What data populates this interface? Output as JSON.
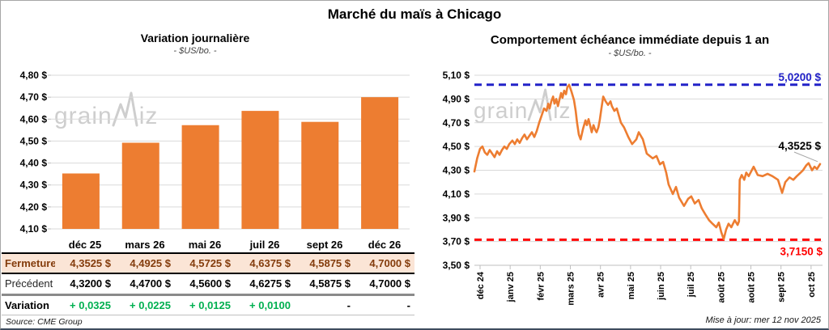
{
  "page": {
    "title": "Marché du maïs à Chicago",
    "source": "Source: CME Group",
    "footer_update": "Mise à jour: mer 12 nov 2025",
    "watermark": {
      "part1": "grain",
      "part2": "iz"
    },
    "colors": {
      "accent_orange": "#ED7D31",
      "positive_green": "#00B050",
      "high_blue": "#2222C8",
      "low_red": "#FF0000",
      "fermeture_text": "#843C0C",
      "fermeture_bg": "#FBE5D6",
      "gridline": "#D9D9D9"
    }
  },
  "table": {
    "columns": [
      "déc 25",
      "mars 26",
      "mai 26",
      "juil 26",
      "sept 26",
      "déc 26"
    ],
    "rows": [
      {
        "label": "Fermeture",
        "values": [
          "4,3525 $",
          "4,4925 $",
          "4,5725 $",
          "4,6375 $",
          "4,5875 $",
          "4,7000 $"
        ]
      },
      {
        "label": "Précédent",
        "values": [
          "4,3200 $",
          "4,4700 $",
          "4,5600 $",
          "4,6275 $",
          "4,5875 $",
          "4,7000 $"
        ]
      },
      {
        "label": "Variation",
        "values": [
          "+ 0,0325",
          "+ 0,0225",
          "+ 0,0125",
          "+ 0,0100",
          "-",
          "-"
        ]
      }
    ]
  },
  "chart_data": [
    {
      "type": "bar",
      "title": "Variation journalière",
      "unit_label": "- $US/bo. -",
      "categories": [
        "déc 25",
        "mars 26",
        "mai 26",
        "juil 26",
        "sept 26",
        "déc 26"
      ],
      "values": [
        4.3525,
        4.4925,
        4.5725,
        4.6375,
        4.5875,
        4.7
      ],
      "ylim": [
        4.1,
        4.8
      ],
      "ytick_step": 0.1,
      "y_tick_labels": [
        "4,80 $",
        "4,70 $",
        "4,60 $",
        "4,50 $",
        "4,40 $",
        "4,30 $",
        "4,20 $",
        "4,10 $"
      ],
      "bar_color": "#ED7D31",
      "grid": true
    },
    {
      "type": "line",
      "title": "Comportement échéance immédiate depuis 1 an",
      "unit_label": "- $US/bo. -",
      "ylim": [
        3.5,
        5.1
      ],
      "ytick_step": 0.2,
      "y_tick_labels": [
        "5,10 $",
        "4,90 $",
        "4,70 $",
        "4,50 $",
        "4,30 $",
        "4,10 $",
        "3,90 $",
        "3,70 $",
        "3,50 $"
      ],
      "x_tick_labels": [
        "déc 24",
        "janv 25",
        "févr 25",
        "mars 25",
        "avr 25",
        "mai 25",
        "juin 25",
        "juil 25",
        "août 25",
        "août 25",
        "sept 25",
        "oct 25"
      ],
      "line_color": "#ED7D31",
      "grid": true,
      "high_line": {
        "value": 5.02,
        "label": "5,0200 $",
        "color": "#2222C8"
      },
      "low_line": {
        "value": 3.715,
        "label": "3,7150 $",
        "color": "#FF0000"
      },
      "last_point_label": "4,3525 $",
      "last_value": 4.3525,
      "points": [
        [
          0.0,
          4.29
        ],
        [
          0.008,
          4.4
        ],
        [
          0.016,
          4.48
        ],
        [
          0.023,
          4.5
        ],
        [
          0.03,
          4.45
        ],
        [
          0.037,
          4.43
        ],
        [
          0.044,
          4.47
        ],
        [
          0.051,
          4.44
        ],
        [
          0.058,
          4.41
        ],
        [
          0.065,
          4.46
        ],
        [
          0.072,
          4.43
        ],
        [
          0.079,
          4.47
        ],
        [
          0.086,
          4.5
        ],
        [
          0.093,
          4.48
        ],
        [
          0.1,
          4.52
        ],
        [
          0.109,
          4.55
        ],
        [
          0.116,
          4.52
        ],
        [
          0.123,
          4.56
        ],
        [
          0.13,
          4.53
        ],
        [
          0.137,
          4.57
        ],
        [
          0.144,
          4.6
        ],
        [
          0.151,
          4.56
        ],
        [
          0.158,
          4.59
        ],
        [
          0.165,
          4.62
        ],
        [
          0.172,
          4.58
        ],
        [
          0.179,
          4.63
        ],
        [
          0.186,
          4.7
        ],
        [
          0.193,
          4.76
        ],
        [
          0.2,
          4.82
        ],
        [
          0.207,
          4.8
        ],
        [
          0.212,
          4.86
        ],
        [
          0.216,
          4.82
        ],
        [
          0.221,
          4.88
        ],
        [
          0.226,
          4.92
        ],
        [
          0.23,
          4.86
        ],
        [
          0.235,
          4.9
        ],
        [
          0.24,
          4.84
        ],
        [
          0.244,
          4.89
        ],
        [
          0.249,
          4.95
        ],
        [
          0.253,
          4.91
        ],
        [
          0.258,
          4.97
        ],
        [
          0.263,
          4.94
        ],
        [
          0.267,
          5.0
        ],
        [
          0.272,
          5.02
        ],
        [
          0.279,
          4.96
        ],
        [
          0.286,
          4.89
        ],
        [
          0.291,
          4.8
        ],
        [
          0.295,
          4.7
        ],
        [
          0.3,
          4.6
        ],
        [
          0.305,
          4.56
        ],
        [
          0.312,
          4.65
        ],
        [
          0.319,
          4.72
        ],
        [
          0.323,
          4.68
        ],
        [
          0.328,
          4.73
        ],
        [
          0.333,
          4.67
        ],
        [
          0.337,
          4.62
        ],
        [
          0.342,
          4.68
        ],
        [
          0.347,
          4.64
        ],
        [
          0.351,
          4.62
        ],
        [
          0.356,
          4.66
        ],
        [
          0.36,
          4.72
        ],
        [
          0.365,
          4.82
        ],
        [
          0.37,
          4.92
        ],
        [
          0.377,
          4.88
        ],
        [
          0.384,
          4.85
        ],
        [
          0.391,
          4.88
        ],
        [
          0.395,
          4.84
        ],
        [
          0.402,
          4.8
        ],
        [
          0.409,
          4.82
        ],
        [
          0.421,
          4.7
        ],
        [
          0.43,
          4.66
        ],
        [
          0.442,
          4.58
        ],
        [
          0.453,
          4.52
        ],
        [
          0.465,
          4.56
        ],
        [
          0.472,
          4.62
        ],
        [
          0.484,
          4.56
        ],
        [
          0.495,
          4.44
        ],
        [
          0.512,
          4.4
        ],
        [
          0.523,
          4.42
        ],
        [
          0.533,
          4.35
        ],
        [
          0.542,
          4.37
        ],
        [
          0.551,
          4.28
        ],
        [
          0.558,
          4.18
        ],
        [
          0.57,
          4.1
        ],
        [
          0.579,
          4.16
        ],
        [
          0.588,
          4.07
        ],
        [
          0.602,
          4.0
        ],
        [
          0.614,
          4.06
        ],
        [
          0.623,
          4.08
        ],
        [
          0.633,
          4.02
        ],
        [
          0.644,
          4.05
        ],
        [
          0.653,
          3.98
        ],
        [
          0.663,
          3.93
        ],
        [
          0.674,
          3.88
        ],
        [
          0.684,
          3.85
        ],
        [
          0.695,
          3.82
        ],
        [
          0.702,
          3.86
        ],
        [
          0.709,
          3.78
        ],
        [
          0.716,
          3.72
        ],
        [
          0.723,
          3.8
        ],
        [
          0.73,
          3.85
        ],
        [
          0.738,
          3.82
        ],
        [
          0.748,
          3.88
        ],
        [
          0.756,
          3.84
        ],
        [
          0.76,
          3.87
        ],
        [
          0.762,
          4.22
        ],
        [
          0.768,
          4.26
        ],
        [
          0.775,
          4.22
        ],
        [
          0.781,
          4.28
        ],
        [
          0.788,
          4.25
        ],
        [
          0.802,
          4.33
        ],
        [
          0.814,
          4.26
        ],
        [
          0.828,
          4.25
        ],
        [
          0.842,
          4.27
        ],
        [
          0.856,
          4.25
        ],
        [
          0.872,
          4.22
        ],
        [
          0.884,
          4.11
        ],
        [
          0.893,
          4.2
        ],
        [
          0.905,
          4.24
        ],
        [
          0.916,
          4.22
        ],
        [
          0.926,
          4.25
        ],
        [
          0.937,
          4.28
        ],
        [
          0.944,
          4.3
        ],
        [
          0.953,
          4.34
        ],
        [
          0.96,
          4.36
        ],
        [
          0.97,
          4.3
        ],
        [
          0.977,
          4.33
        ],
        [
          0.984,
          4.31
        ],
        [
          0.993,
          4.3525
        ]
      ]
    }
  ]
}
